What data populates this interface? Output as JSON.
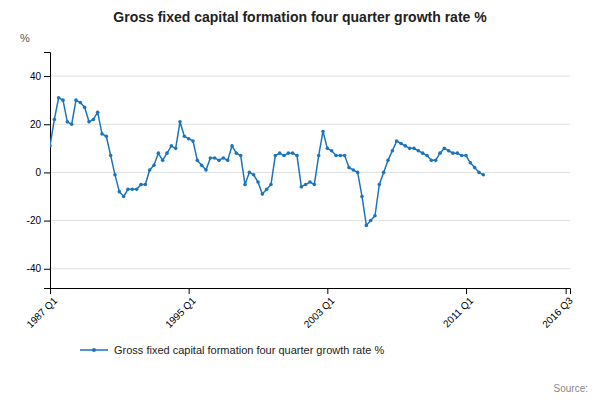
{
  "chart_data": {
    "type": "line",
    "title": "Gross fixed capital formation four quarter growth rate %",
    "ylabel": "%",
    "x": [
      0,
      1,
      2,
      3,
      4,
      5,
      6,
      7,
      8,
      9,
      10,
      11,
      12,
      13,
      14,
      15,
      16,
      17,
      18,
      19,
      20,
      21,
      22,
      23,
      24,
      25,
      26,
      27,
      28,
      29,
      30,
      31,
      32,
      33,
      34,
      35,
      36,
      37,
      38,
      39,
      40,
      41,
      42,
      43,
      44,
      45,
      46,
      47,
      48,
      49,
      50,
      51,
      52,
      53,
      54,
      55,
      56,
      57,
      58,
      59,
      60,
      61,
      62,
      63,
      64,
      65,
      66,
      67,
      68,
      69,
      70,
      71,
      72,
      73,
      74,
      75,
      76,
      77,
      78,
      79,
      80,
      81,
      82,
      83,
      84,
      85,
      86,
      87,
      88,
      89,
      90,
      91,
      92,
      93,
      94,
      95,
      96,
      97,
      98,
      99,
      100
    ],
    "series": [
      {
        "name": "Gross fixed capital formation four quarter growth rate %",
        "color": "#1B75BC",
        "marker": "circle",
        "values": [
          11,
          22,
          31,
          30,
          21,
          20,
          30,
          29,
          27,
          21,
          22,
          25,
          16,
          15,
          7,
          -1,
          -8,
          -10,
          -7,
          -7,
          -7,
          -5,
          -5,
          1,
          3,
          8,
          5,
          8,
          11,
          10,
          21,
          15,
          14,
          13,
          5,
          3,
          1,
          6,
          6,
          5,
          6,
          5,
          11,
          8,
          7,
          -5,
          0,
          -1,
          -4,
          -9,
          -7,
          -5,
          7,
          8,
          7,
          8,
          8,
          7,
          -6,
          -5,
          -4,
          -5,
          7,
          17,
          10,
          9,
          7,
          7,
          7,
          2,
          1,
          0,
          -10,
          -22,
          -20,
          -18,
          -5,
          0,
          5,
          9,
          13,
          12,
          11,
          10,
          10,
          9,
          8,
          7,
          5,
          5,
          8,
          10,
          9,
          8,
          8,
          7,
          7,
          4,
          2,
          0,
          -1
        ]
      }
    ],
    "xlim": [
      0,
      120
    ],
    "xticks": [
      {
        "value": 0,
        "label": "1987 Q1"
      },
      {
        "value": 32,
        "label": "1995 Q1"
      },
      {
        "value": 64,
        "label": "2003 Q1"
      },
      {
        "value": 96,
        "label": "2011 Q1"
      },
      {
        "value": 119,
        "label": "2016 Q3"
      }
    ],
    "ylim": [
      -48,
      50
    ],
    "yticks": [
      -40,
      -20,
      0,
      20,
      40
    ],
    "grid": true,
    "legend": "bottom",
    "annotations": [
      "Source:"
    ]
  }
}
